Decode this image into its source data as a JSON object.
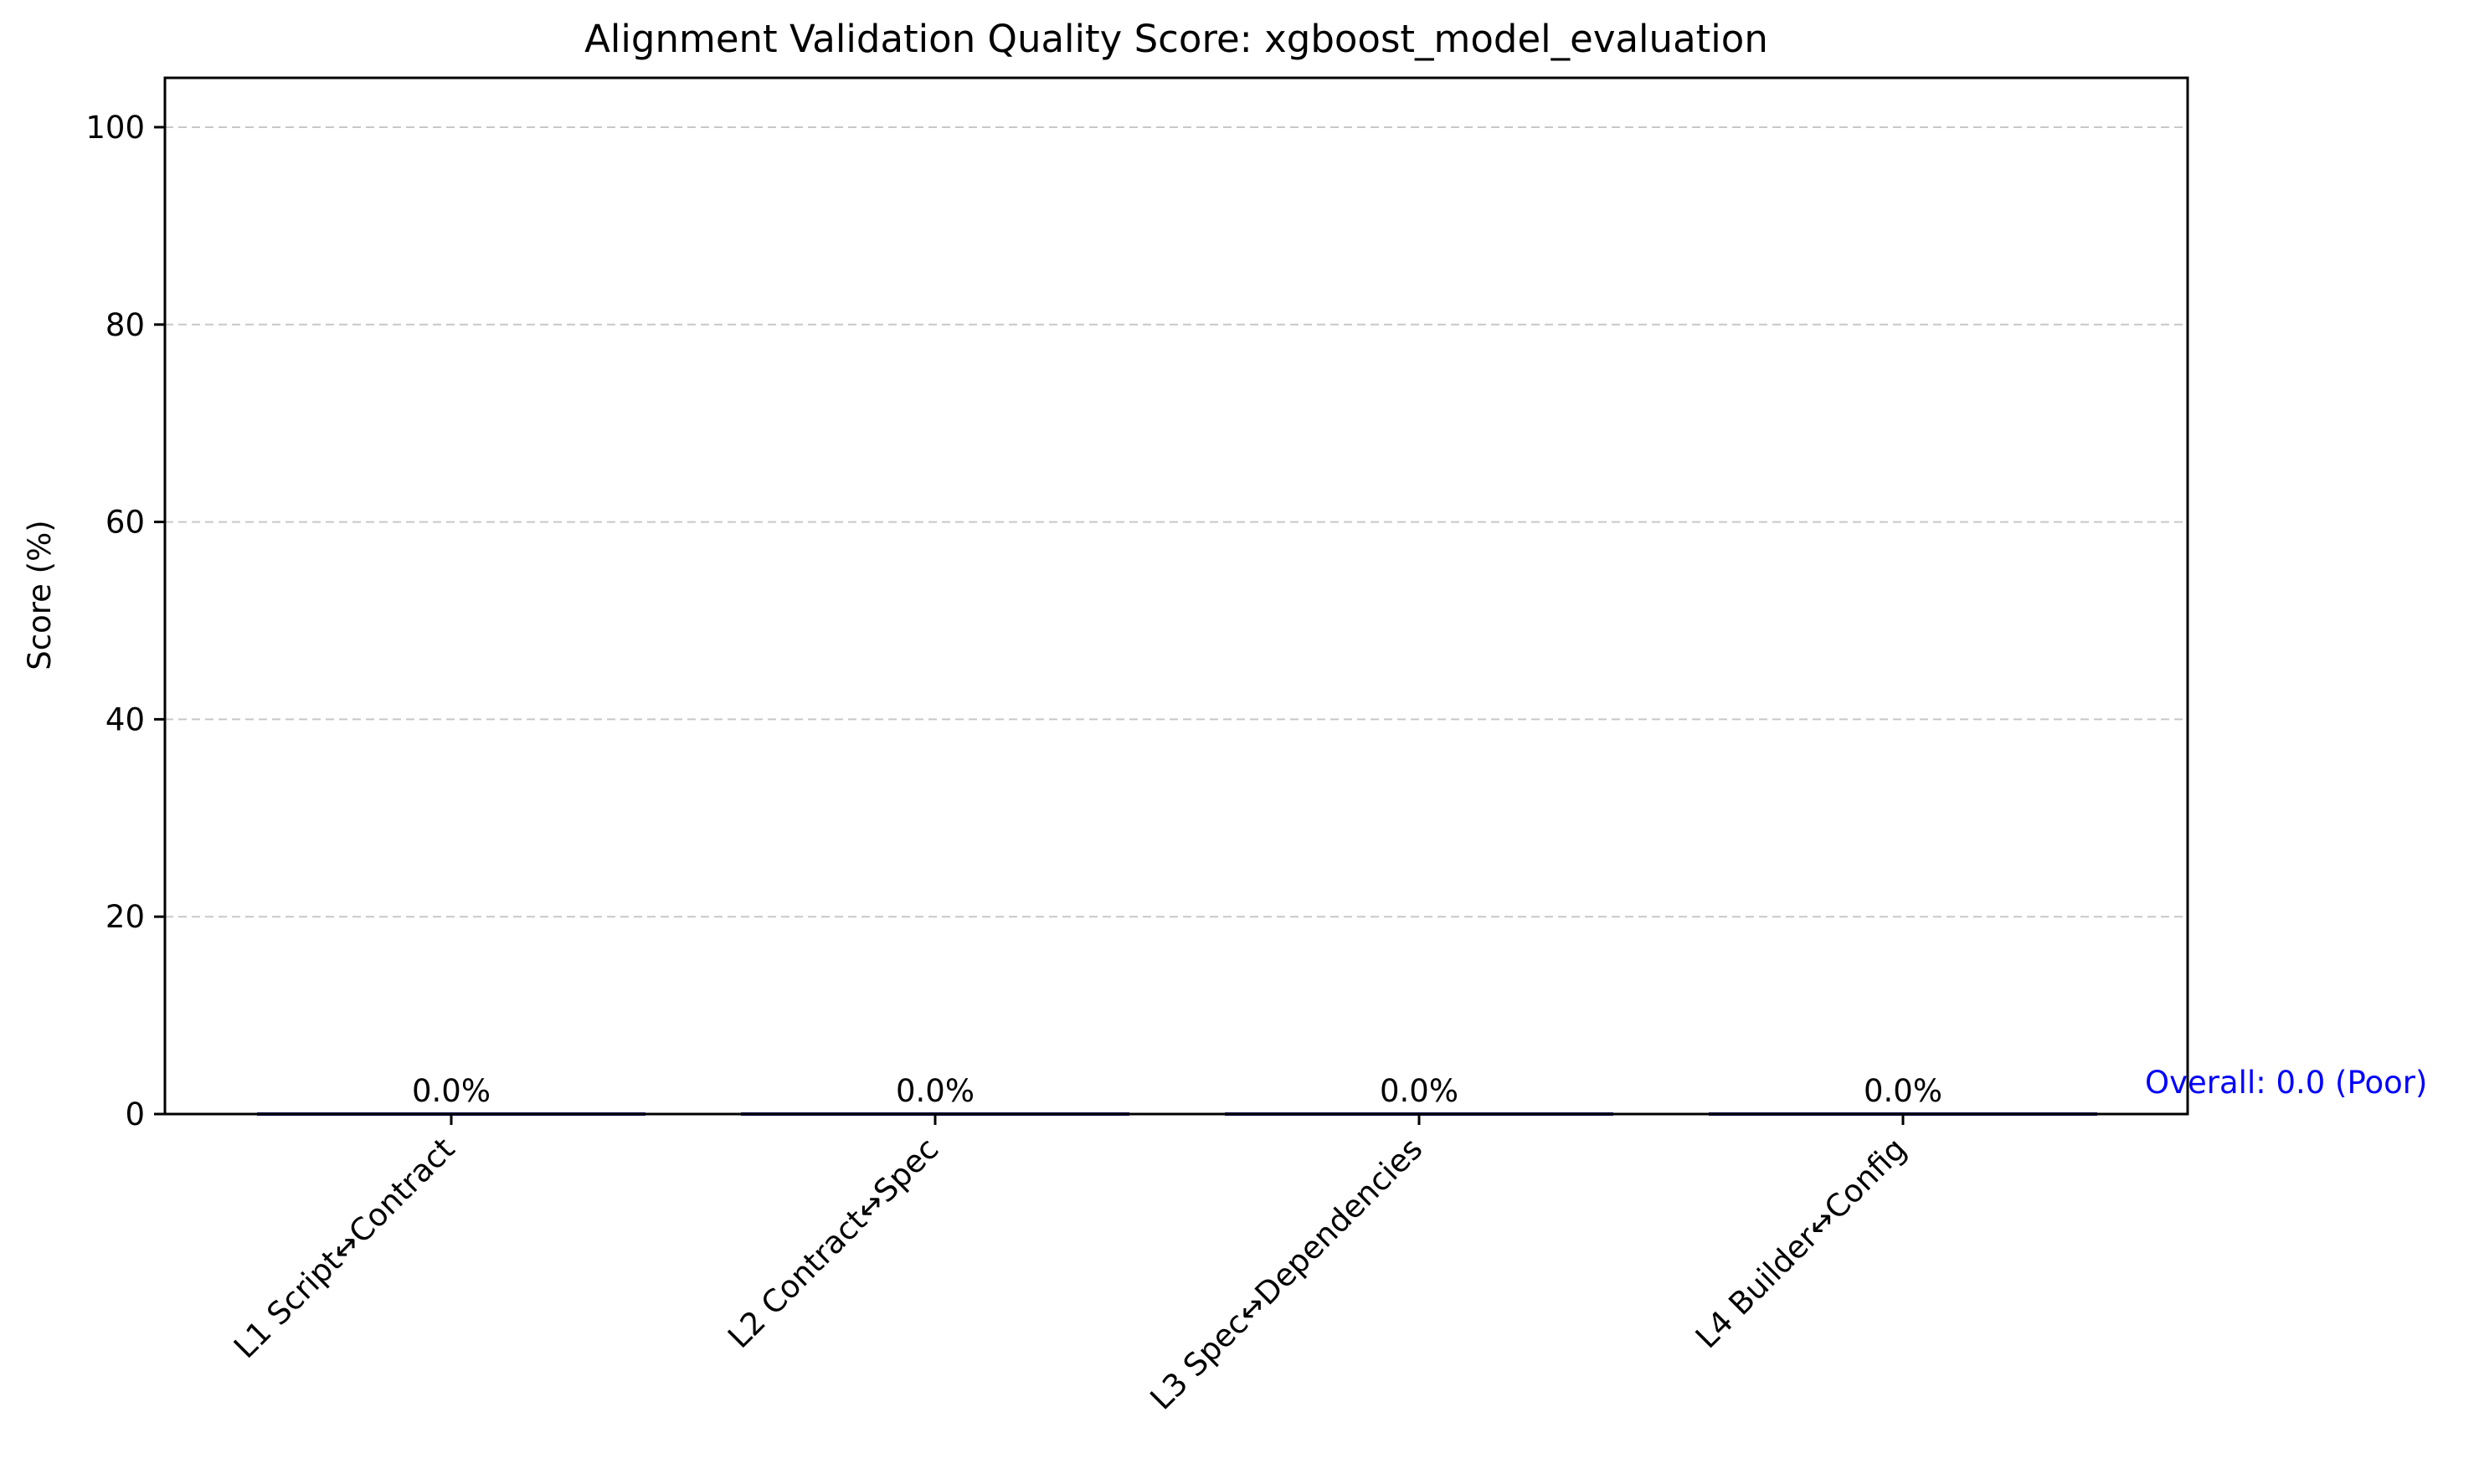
{
  "chart_data": {
    "type": "bar",
    "title": "Alignment Validation Quality Score: xgboost_model_evaluation",
    "xlabel": "",
    "ylabel": "Score (%)",
    "categories": [
      "L1 Script↔Contract",
      "L2 Contract↔Spec",
      "L3 Spec↔Dependencies",
      "L4 Builder↔Config"
    ],
    "values": [
      0.0,
      0.0,
      0.0,
      0.0
    ],
    "value_labels": [
      "0.0%",
      "0.0%",
      "0.0%",
      "0.0%"
    ],
    "ylim": [
      0,
      105
    ],
    "yticks": [
      0,
      20,
      40,
      60,
      80,
      100
    ],
    "grid": "y-dashed",
    "annotation": {
      "text": "Overall: 0.0 (Poor)",
      "value": 0.0,
      "color": "#0000ff"
    },
    "colors": {
      "grid": "#c8c8c8",
      "axis": "#000000",
      "bar": "#000080"
    }
  }
}
